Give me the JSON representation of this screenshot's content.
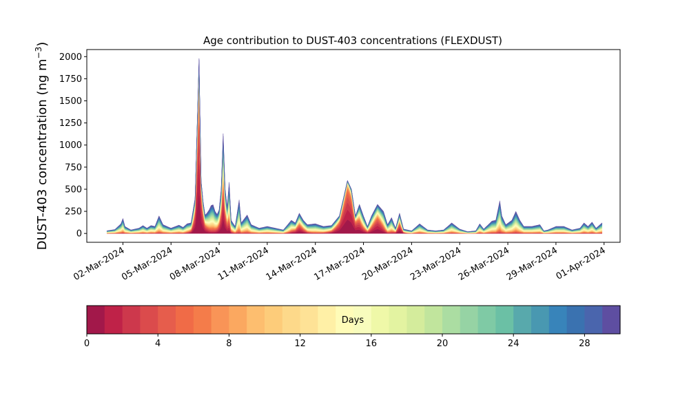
{
  "chart_data": {
    "type": "area",
    "stacked": true,
    "title": "Age contribution to DUST-403 concentrations (FLEXDUST)",
    "ylabel_main": "DUST-403 concentration (ng m",
    "ylabel_sup": "−3",
    "ylabel_close": ")",
    "xlabel": "",
    "ylim": [
      -100,
      2080
    ],
    "yticks": [
      0,
      250,
      500,
      750,
      1000,
      1250,
      1500,
      1750,
      2000
    ],
    "xlim": [
      "2024-02-28T18:00",
      "2024-04-02T00:00"
    ],
    "x_start": "2024-03-01T00:00",
    "x_end": "2024-03-31T21:00",
    "xticks": [
      "02-Mar-2024",
      "05-Mar-2024",
      "08-Mar-2024",
      "11-Mar-2024",
      "14-Mar-2024",
      "17-Mar-2024",
      "20-Mar-2024",
      "23-Mar-2024",
      "26-Mar-2024",
      "29-Mar-2024",
      "01-Apr-2024"
    ],
    "xtick_dates": [
      "2024-03-02",
      "2024-03-05",
      "2024-03-08",
      "2024-03-11",
      "2024-03-14",
      "2024-03-17",
      "2024-03-20",
      "2024-03-23",
      "2024-03-26",
      "2024-03-29",
      "2024-04-01"
    ],
    "total_profile": [
      [
        "2024-03-01T00:00",
        30
      ],
      [
        "2024-03-01T12:00",
        45
      ],
      [
        "2024-03-01T21:00",
        110
      ],
      [
        "2024-03-02T00:00",
        170
      ],
      [
        "2024-03-02T03:00",
        80
      ],
      [
        "2024-03-02T12:00",
        40
      ],
      [
        "2024-03-03T00:00",
        60
      ],
      [
        "2024-03-03T06:00",
        90
      ],
      [
        "2024-03-03T12:00",
        60
      ],
      [
        "2024-03-03T18:00",
        90
      ],
      [
        "2024-03-04T00:00",
        80
      ],
      [
        "2024-03-04T06:00",
        200
      ],
      [
        "2024-03-04T12:00",
        100
      ],
      [
        "2024-03-05T00:00",
        60
      ],
      [
        "2024-03-05T12:00",
        95
      ],
      [
        "2024-03-05T18:00",
        70
      ],
      [
        "2024-03-06T00:00",
        110
      ],
      [
        "2024-03-06T06:00",
        120
      ],
      [
        "2024-03-06T12:00",
        400
      ],
      [
        "2024-03-06T18:00",
        1980
      ],
      [
        "2024-03-06T21:00",
        600
      ],
      [
        "2024-03-07T02:00",
        200
      ],
      [
        "2024-03-07T08:00",
        250
      ],
      [
        "2024-03-07T14:00",
        350
      ],
      [
        "2024-03-07T20:00",
        200
      ],
      [
        "2024-03-08T02:00",
        300
      ],
      [
        "2024-03-08T06:00",
        1130
      ],
      [
        "2024-03-08T09:00",
        500
      ],
      [
        "2024-03-08T12:00",
        300
      ],
      [
        "2024-03-08T15:00",
        580
      ],
      [
        "2024-03-08T18:00",
        150
      ],
      [
        "2024-03-09T00:00",
        80
      ],
      [
        "2024-03-09T06:00",
        380
      ],
      [
        "2024-03-09T09:00",
        120
      ],
      [
        "2024-03-09T18:00",
        210
      ],
      [
        "2024-03-10T00:00",
        100
      ],
      [
        "2024-03-10T12:00",
        60
      ],
      [
        "2024-03-11T00:00",
        80
      ],
      [
        "2024-03-11T12:00",
        60
      ],
      [
        "2024-03-12T00:00",
        40
      ],
      [
        "2024-03-12T12:00",
        150
      ],
      [
        "2024-03-12T18:00",
        120
      ],
      [
        "2024-03-13T00:00",
        230
      ],
      [
        "2024-03-13T06:00",
        150
      ],
      [
        "2024-03-13T12:00",
        100
      ],
      [
        "2024-03-14T00:00",
        110
      ],
      [
        "2024-03-14T12:00",
        80
      ],
      [
        "2024-03-15T00:00",
        90
      ],
      [
        "2024-03-15T12:00",
        200
      ],
      [
        "2024-03-15T18:00",
        400
      ],
      [
        "2024-03-16T00:00",
        600
      ],
      [
        "2024-03-16T06:00",
        500
      ],
      [
        "2024-03-16T12:00",
        200
      ],
      [
        "2024-03-16T18:00",
        330
      ],
      [
        "2024-03-17T00:00",
        200
      ],
      [
        "2024-03-17T06:00",
        80
      ],
      [
        "2024-03-17T12:00",
        200
      ],
      [
        "2024-03-17T21:00",
        330
      ],
      [
        "2024-03-18T06:00",
        250
      ],
      [
        "2024-03-18T12:00",
        100
      ],
      [
        "2024-03-18T18:00",
        180
      ],
      [
        "2024-03-19T00:00",
        60
      ],
      [
        "2024-03-19T06:00",
        230
      ],
      [
        "2024-03-19T12:00",
        50
      ],
      [
        "2024-03-20T00:00",
        30
      ],
      [
        "2024-03-20T12:00",
        110
      ],
      [
        "2024-03-21T00:00",
        40
      ],
      [
        "2024-03-21T12:00",
        30
      ],
      [
        "2024-03-22T00:00",
        40
      ],
      [
        "2024-03-22T12:00",
        120
      ],
      [
        "2024-03-23T00:00",
        50
      ],
      [
        "2024-03-23T12:00",
        20
      ],
      [
        "2024-03-24T00:00",
        30
      ],
      [
        "2024-03-24T06:00",
        110
      ],
      [
        "2024-03-24T12:00",
        50
      ],
      [
        "2024-03-25T00:00",
        140
      ],
      [
        "2024-03-25T06:00",
        150
      ],
      [
        "2024-03-25T12:00",
        370
      ],
      [
        "2024-03-25T15:00",
        200
      ],
      [
        "2024-03-25T21:00",
        100
      ],
      [
        "2024-03-26T06:00",
        150
      ],
      [
        "2024-03-26T12:00",
        250
      ],
      [
        "2024-03-26T18:00",
        150
      ],
      [
        "2024-03-27T00:00",
        80
      ],
      [
        "2024-03-27T12:00",
        80
      ],
      [
        "2024-03-28T00:00",
        100
      ],
      [
        "2024-03-28T06:00",
        30
      ],
      [
        "2024-03-28T12:00",
        40
      ],
      [
        "2024-03-29T00:00",
        80
      ],
      [
        "2024-03-29T12:00",
        80
      ],
      [
        "2024-03-30T00:00",
        40
      ],
      [
        "2024-03-30T12:00",
        60
      ],
      [
        "2024-03-30T18:00",
        120
      ],
      [
        "2024-03-31T00:00",
        80
      ],
      [
        "2024-03-31T06:00",
        130
      ],
      [
        "2024-03-31T12:00",
        60
      ],
      [
        "2024-03-31T21:00",
        120
      ]
    ],
    "colorbar": {
      "label": "Days",
      "ticks": [
        0,
        4,
        8,
        12,
        16,
        20,
        24,
        28
      ],
      "min": 0,
      "max": 30,
      "colors": [
        "#a2184a",
        "#bf2248",
        "#cd384c",
        "#db4b4c",
        "#e65d4c",
        "#f06b47",
        "#f47c4a",
        "#f99457",
        "#fba860",
        "#fdbe6f",
        "#fdcc7a",
        "#fdd98a",
        "#fee296",
        "#fff0a6",
        "#fffcb8",
        "#f8fcbd",
        "#eff8a8",
        "#e3f3a1",
        "#d4ec9c",
        "#c1e59d",
        "#abdda2",
        "#96d3a4",
        "#7fcaa5",
        "#6bc0a5",
        "#58a9ac",
        "#4998b1",
        "#3884ba",
        "#3a72b0",
        "#4a65ad",
        "#5e4ea1"
      ]
    }
  }
}
